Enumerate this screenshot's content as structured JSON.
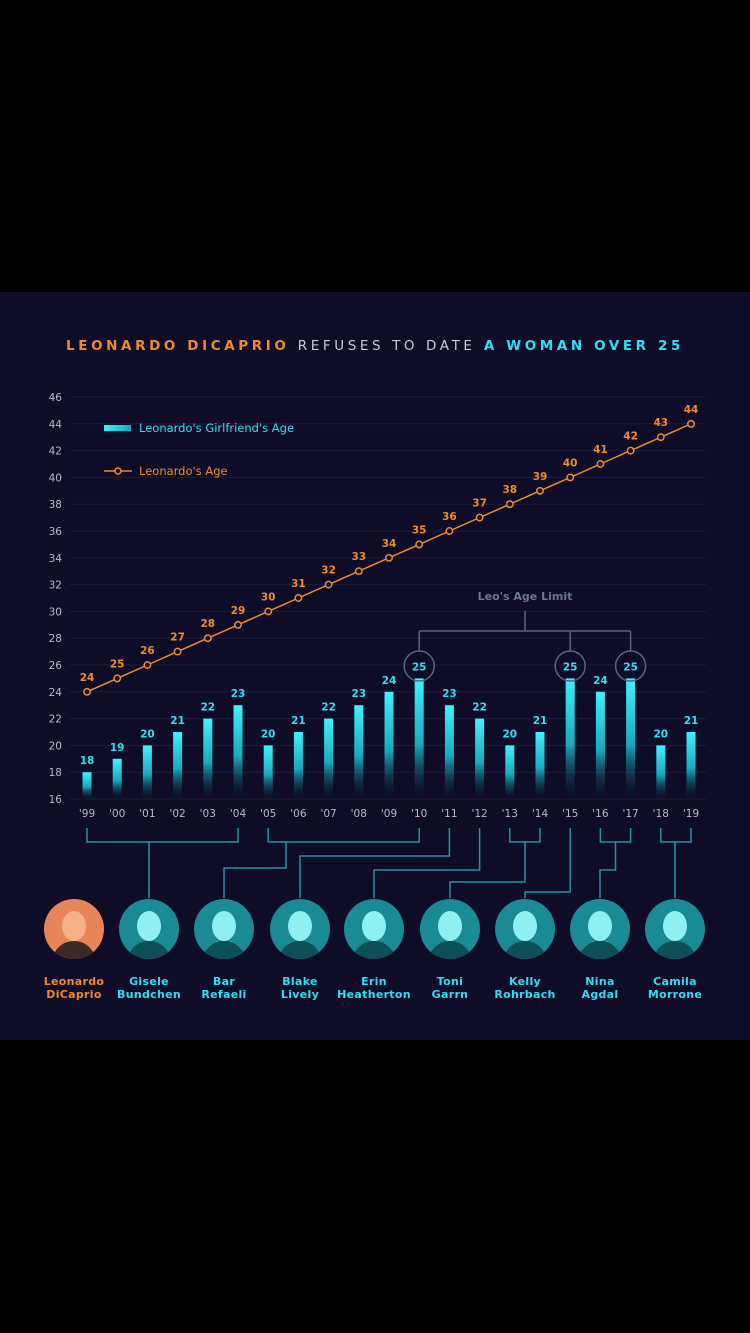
{
  "title": {
    "part1": "LEONARDO DICAPRIO",
    "part2": "REFUSES TO DATE",
    "part3": "A WOMAN OVER 25"
  },
  "colors": {
    "accent_orange": "#f08a2c",
    "accent_cyan": "#2fe0f0",
    "background": "#0e0c26"
  },
  "chart_data": {
    "type": "bar",
    "categories": [
      "'99",
      "'00",
      "'01",
      "'02",
      "'03",
      "'04",
      "'05",
      "'06",
      "'07",
      "'08",
      "'09",
      "'10",
      "'11",
      "'12",
      "'13",
      "'14",
      "'15",
      "'16",
      "'17",
      "'18",
      "'19"
    ],
    "series": [
      {
        "name": "Leonardo's Girlfriend's Age",
        "type": "bar",
        "values": [
          18,
          19,
          20,
          21,
          22,
          23,
          20,
          21,
          22,
          23,
          24,
          25,
          23,
          22,
          20,
          21,
          25,
          24,
          25,
          20,
          21
        ]
      },
      {
        "name": "Leonardo's Age",
        "type": "line",
        "values": [
          24,
          25,
          26,
          27,
          28,
          29,
          30,
          31,
          32,
          33,
          34,
          35,
          36,
          37,
          38,
          39,
          40,
          41,
          42,
          43,
          44
        ]
      }
    ],
    "ylim": [
      16,
      46
    ],
    "yticks": [
      16,
      18,
      20,
      22,
      24,
      26,
      28,
      30,
      32,
      34,
      36,
      38,
      40,
      42,
      44,
      46
    ],
    "grid": true,
    "legend_position": "top-left",
    "annotation": "Leo's Age Limit"
  },
  "people": [
    {
      "first": "Leonardo",
      "last": "DiCaprio"
    },
    {
      "first": "Gisele",
      "last": "Bundchen"
    },
    {
      "first": "Bar",
      "last": "Refaeli"
    },
    {
      "first": "Blake",
      "last": "Lively"
    },
    {
      "first": "Erin",
      "last": "Heatherton"
    },
    {
      "first": "Toni",
      "last": "Garrn"
    },
    {
      "first": "Kelly",
      "last": "Rohrbach"
    },
    {
      "first": "Nina",
      "last": "Agdal"
    },
    {
      "first": "Camila",
      "last": "Morrone"
    }
  ]
}
